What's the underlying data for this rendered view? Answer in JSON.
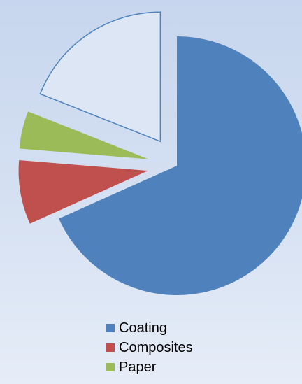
{
  "chart_data": {
    "type": "pie",
    "title": "",
    "categories": [
      "Coating",
      "Composites",
      "Paper",
      ""
    ],
    "values": [
      68.3,
      8.0,
      4.7,
      19.0
    ],
    "colors": [
      "#4f81bd",
      "#c0504d",
      "#9bbb59",
      "#4f81bd"
    ],
    "styles": [
      "filled",
      "filled",
      "filled",
      "outline"
    ],
    "legend": {
      "position": "bottom",
      "entries": [
        {
          "label": "Coating",
          "color": "#4f81bd"
        },
        {
          "label": "Composites",
          "color": "#c0504d"
        },
        {
          "label": "Paper",
          "color": "#9bbb59"
        }
      ]
    }
  }
}
